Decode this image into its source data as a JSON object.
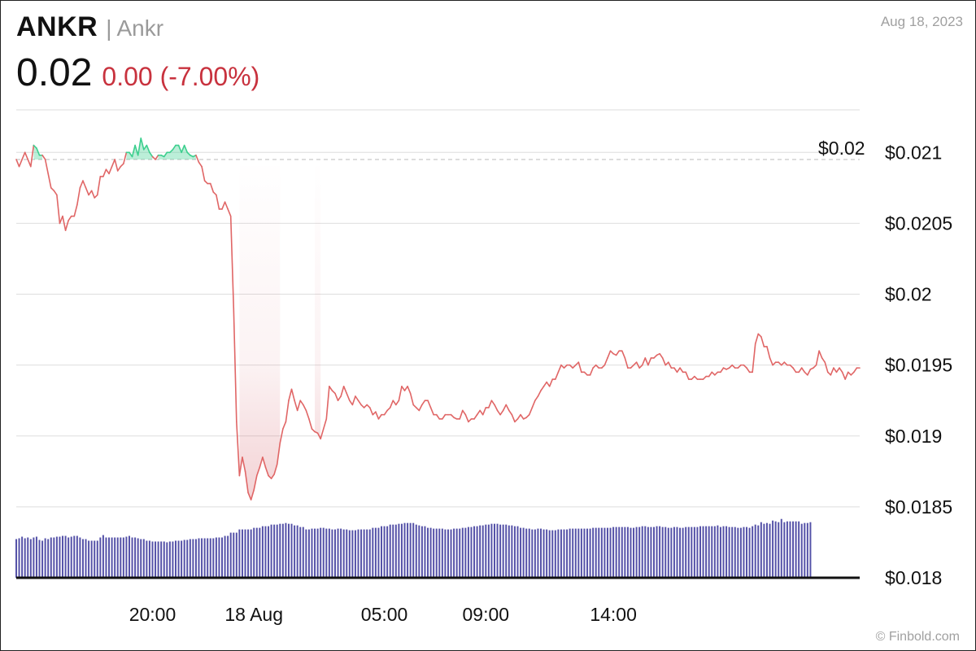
{
  "header": {
    "ticker": "ANKR",
    "separator": "|",
    "name": "Ankr",
    "price": "0.02",
    "change": "0.00 (-7.00%)",
    "date": "Aug 18, 2023"
  },
  "watermark": "© Finbold.com",
  "colors": {
    "down": "#c8323e",
    "down_line": "#e06666",
    "up": "#3ccf8e",
    "volume": "#5552a8",
    "grid": "#dedede"
  },
  "chart_data": {
    "type": "line",
    "title": "",
    "xlabel": "",
    "ylabel": "",
    "ylim": [
      0.018,
      0.0213
    ],
    "y_ticks": [
      {
        "value": 0.021,
        "label": "$0.021"
      },
      {
        "value": 0.0205,
        "label": "$0.0205"
      },
      {
        "value": 0.02,
        "label": "$0.02"
      },
      {
        "value": 0.0195,
        "label": "$0.0195"
      },
      {
        "value": 0.019,
        "label": "$0.019"
      },
      {
        "value": 0.0185,
        "label": "$0.0185"
      },
      {
        "value": 0.018,
        "label": "$0.018"
      }
    ],
    "x_ticks": [
      {
        "index": 47,
        "label": "20:00"
      },
      {
        "index": 82,
        "label": "18 Aug"
      },
      {
        "index": 127,
        "label": "05:00"
      },
      {
        "index": 162,
        "label": "09:00"
      },
      {
        "index": 206,
        "label": "14:00"
      }
    ],
    "reference": {
      "value": 0.02095,
      "label": "$0.02"
    },
    "series": [
      {
        "values": [
          0.02095,
          0.0209,
          0.02095,
          0.021,
          0.02095,
          0.0209,
          0.02105,
          0.02103,
          0.02098,
          0.02098,
          0.02095,
          0.02085,
          0.02075,
          0.02073,
          0.0207,
          0.0205,
          0.02055,
          0.02045,
          0.02052,
          0.02055,
          0.02055,
          0.02063,
          0.02075,
          0.0208,
          0.02075,
          0.0207,
          0.02073,
          0.02068,
          0.0207,
          0.02083,
          0.02083,
          0.02088,
          0.02085,
          0.0209,
          0.02095,
          0.02087,
          0.0209,
          0.02092,
          0.021,
          0.021,
          0.02097,
          0.02105,
          0.02098,
          0.0211,
          0.02102,
          0.02105,
          0.021,
          0.02097,
          0.02095,
          0.02098,
          0.02098,
          0.02097,
          0.021,
          0.021,
          0.02102,
          0.02105,
          0.02105,
          0.021,
          0.02105,
          0.021,
          0.02098,
          0.02097,
          0.02098,
          0.02093,
          0.0209,
          0.0208,
          0.02078,
          0.02078,
          0.02072,
          0.0207,
          0.0206,
          0.0206,
          0.02065,
          0.0206,
          0.02055,
          0.0199,
          0.0191,
          0.01872,
          0.01885,
          0.01875,
          0.0186,
          0.01855,
          0.01862,
          0.01872,
          0.01878,
          0.01885,
          0.01878,
          0.01872,
          0.0187,
          0.01873,
          0.0188,
          0.01895,
          0.01905,
          0.0191,
          0.01925,
          0.01933,
          0.01925,
          0.01918,
          0.01925,
          0.01922,
          0.01918,
          0.01912,
          0.01905,
          0.01903,
          0.01902,
          0.01898,
          0.01905,
          0.01912,
          0.01935,
          0.01932,
          0.0193,
          0.01925,
          0.01928,
          0.01935,
          0.0193,
          0.01925,
          0.01922,
          0.01928,
          0.01925,
          0.01922,
          0.0192,
          0.01922,
          0.0192,
          0.01915,
          0.01917,
          0.01912,
          0.01915,
          0.01915,
          0.01918,
          0.0192,
          0.01925,
          0.01922,
          0.01925,
          0.01935,
          0.01932,
          0.01935,
          0.0193,
          0.01922,
          0.0192,
          0.01918,
          0.01922,
          0.01925,
          0.01925,
          0.0192,
          0.01915,
          0.01915,
          0.01912,
          0.01912,
          0.01915,
          0.01915,
          0.01915,
          0.01913,
          0.01912,
          0.01912,
          0.01918,
          0.01915,
          0.0191,
          0.01912,
          0.01912,
          0.01915,
          0.01918,
          0.01915,
          0.0192,
          0.0192,
          0.01925,
          0.01922,
          0.01918,
          0.01915,
          0.01918,
          0.01922,
          0.01918,
          0.01915,
          0.0191,
          0.01912,
          0.01915,
          0.01912,
          0.01913,
          0.01915,
          0.0192,
          0.01925,
          0.01928,
          0.01932,
          0.01935,
          0.01938,
          0.01935,
          0.0194,
          0.0194,
          0.01945,
          0.0195,
          0.01948,
          0.0195,
          0.0195,
          0.01948,
          0.0195,
          0.01952,
          0.01945,
          0.01945,
          0.01943,
          0.01943,
          0.01948,
          0.0195,
          0.01948,
          0.01948,
          0.0195,
          0.01955,
          0.0196,
          0.01958,
          0.01957,
          0.0196,
          0.0196,
          0.01955,
          0.01948,
          0.01948,
          0.0195,
          0.01952,
          0.01948,
          0.0195,
          0.01955,
          0.0195,
          0.01955,
          0.01955,
          0.01957,
          0.01958,
          0.01955,
          0.0195,
          0.01952,
          0.01948,
          0.01948,
          0.01945,
          0.01948,
          0.01945,
          0.01945,
          0.0194,
          0.0194,
          0.01942,
          0.0194,
          0.0194,
          0.0194,
          0.01942,
          0.01942,
          0.01945,
          0.01943,
          0.01945,
          0.01945,
          0.01948,
          0.01947,
          0.01948,
          0.0195,
          0.01948,
          0.01948,
          0.0195,
          0.0195,
          0.01948,
          0.01945,
          0.01945,
          0.01965,
          0.01972,
          0.0197,
          0.01963,
          0.01963,
          0.01955,
          0.0195,
          0.01952,
          0.01952,
          0.0195,
          0.01952,
          0.0195,
          0.0195,
          0.01948,
          0.01945,
          0.01945,
          0.01948,
          0.01945,
          0.01943,
          0.01947,
          0.01948,
          0.0195,
          0.0196,
          0.01955,
          0.01952,
          0.01945,
          0.01943,
          0.01948,
          0.01945,
          0.01948,
          0.01945,
          0.0194,
          0.01945,
          0.01943,
          0.01945,
          0.01948,
          0.01948
        ]
      }
    ],
    "volume": {
      "ylim": [
        0,
        100
      ],
      "values": [
        48,
        49,
        51,
        49,
        50,
        48,
        50,
        51,
        47,
        46,
        49,
        48,
        50,
        50,
        51,
        51,
        52,
        52,
        50,
        51,
        52,
        52,
        50,
        48,
        48,
        46,
        46,
        46,
        46,
        50,
        53,
        50,
        50,
        50,
        50,
        50,
        50,
        50,
        51,
        52,
        50,
        50,
        49,
        48,
        48,
        46,
        46,
        45,
        45,
        45,
        45,
        45,
        44,
        45,
        45,
        46,
        46,
        46,
        47,
        47,
        48,
        48,
        48,
        49,
        49,
        49,
        49,
        49,
        49,
        50,
        50,
        50,
        52,
        52,
        56,
        56,
        56,
        60,
        60,
        60,
        60,
        60,
        62,
        62,
        62,
        64,
        64,
        64,
        66,
        66,
        66,
        67,
        67,
        68,
        67,
        67,
        65,
        65,
        63,
        63,
        60,
        60,
        61,
        61,
        61,
        62,
        62,
        61,
        61,
        60,
        60,
        61,
        61,
        60,
        60,
        59,
        59,
        59,
        60,
        60,
        60,
        60,
        60,
        62,
        62,
        62,
        64,
        64,
        64,
        66,
        66,
        66,
        67,
        67,
        68,
        68,
        68,
        68,
        66,
        65,
        64,
        64,
        62,
        62,
        61,
        61,
        61,
        61,
        60,
        60,
        60,
        61,
        61,
        61,
        62,
        62,
        63,
        63,
        64,
        64,
        65,
        65,
        66,
        66,
        67,
        67,
        67,
        66,
        66,
        66,
        65,
        65,
        64,
        64,
        62,
        62,
        61,
        61,
        60,
        60,
        61,
        61,
        60,
        60,
        59,
        59,
        59,
        60,
        60,
        60,
        60,
        61,
        61,
        61,
        61,
        61,
        61,
        61,
        61,
        62,
        62,
        62,
        62,
        62,
        62,
        62,
        63,
        63,
        63,
        63,
        63,
        63,
        62,
        62,
        63,
        63,
        64,
        64,
        63,
        63,
        63,
        64,
        64,
        63,
        63,
        62,
        62,
        63,
        63,
        62,
        62,
        63,
        63,
        63,
        63,
        63,
        64,
        64,
        64,
        64,
        64,
        64,
        65,
        63,
        64,
        64,
        63,
        63,
        63,
        62,
        62,
        63,
        63,
        62,
        64,
        66,
        65,
        69,
        67,
        68,
        67,
        71,
        70,
        69,
        73,
        69,
        70,
        70,
        70,
        70,
        70,
        67,
        68,
        68,
        69
      ]
    }
  }
}
